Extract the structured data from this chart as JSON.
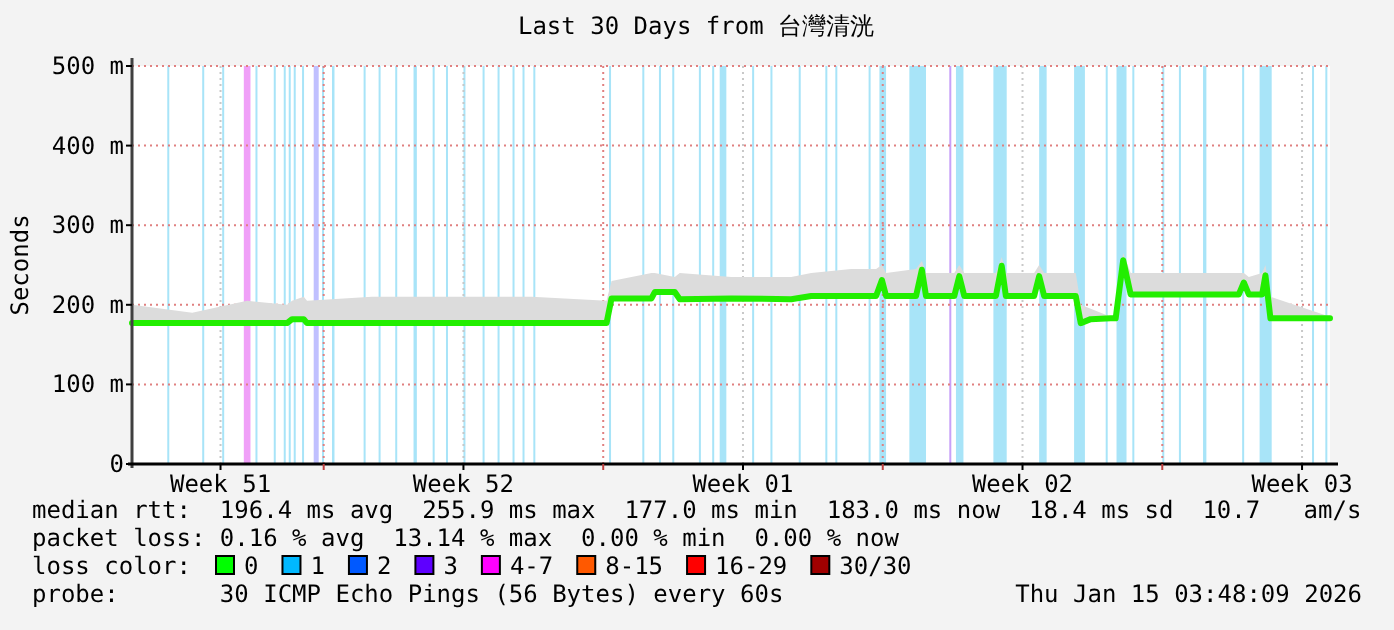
{
  "chart_data": {
    "type": "line",
    "title": "Last 30 Days from 台灣清洸",
    "ylabel": "Seconds",
    "xlim": [
      "2025-12-16T04:48",
      "2026-01-15T04:48"
    ],
    "ylim": [
      0,
      500
    ],
    "xticks": [
      {
        "value": "2025-12-18T10:00",
        "label": "Week 51"
      },
      {
        "value": "2025-12-21T00:00",
        "label": null
      },
      {
        "value": "2025-12-24T12:00",
        "label": "Week 52"
      },
      {
        "value": "2025-12-28T00:00",
        "label": null
      },
      {
        "value": "2025-12-31T12:00",
        "label": "Week 01"
      },
      {
        "value": "2026-01-04T00:00",
        "label": null
      },
      {
        "value": "2026-01-07T12:00",
        "label": "Week 02"
      },
      {
        "value": "2026-01-11T00:00",
        "label": null
      },
      {
        "value": "2026-01-14T12:00",
        "label": "Week 03"
      }
    ],
    "yticks": [
      0,
      {
        "value": 100,
        "label": "100 m"
      },
      {
        "value": 200,
        "label": "200 m"
      },
      {
        "value": 300,
        "label": "300 m"
      },
      {
        "value": 400,
        "label": "400 m"
      },
      {
        "value": 500,
        "label": "500 m"
      }
    ],
    "grid": true,
    "legend": "bottom",
    "legend_title": "loss color:",
    "series": [
      {
        "color": "#22ee00",
        "x": [
          "2025-12-16T04:48",
          "2025-12-17T17:00",
          "2025-12-19T02:00",
          "2025-12-20T02:00",
          "2025-12-20T05:00",
          "2025-12-20T12:00",
          "2025-12-20T14:00",
          "2025-12-22T05:00",
          "2025-12-24T05:00",
          "2025-12-26T05:00",
          "2025-12-28T02:00",
          "2025-12-28T05:00",
          "2025-12-29T05:00",
          "2025-12-29T07:00",
          "2025-12-29T19:00",
          "2025-12-29T22:00",
          "2025-12-31T05:00",
          "2026-01-01T17:00",
          "2026-01-02T05:00",
          "2026-01-03T05:00",
          "2026-01-03T20:00",
          "2026-01-03T23:30",
          "2026-01-04T02:00",
          "2026-01-04T20:00",
          "2026-01-04T23:30",
          "2026-01-05T02:00",
          "2026-01-05T19:00",
          "2026-01-05T22:00",
          "2026-01-06T01:00",
          "2026-01-06T20:00",
          "2026-01-06T23:30",
          "2026-01-07T02:00",
          "2026-01-07T19:00",
          "2026-01-07T22:00",
          "2026-01-08T01:00",
          "2026-01-08T20:00",
          "2026-01-08T23:00",
          "2026-01-09T05:00",
          "2026-01-09T17:00",
          "2026-01-09T20:00",
          "2026-01-10T00:30",
          "2026-01-10T05:00",
          "2026-01-12T22:00",
          "2026-01-13T01:00",
          "2026-01-13T04:00",
          "2026-01-13T12:00",
          "2026-01-13T14:00",
          "2026-01-13T17:00",
          "2026-01-15T04:48"
        ],
        "values": [
          177,
          177,
          177,
          177,
          182,
          182,
          177,
          177,
          177,
          177,
          177,
          208,
          208,
          216,
          216,
          207,
          208,
          207,
          211,
          211,
          211,
          231,
          211,
          211,
          244,
          211,
          211,
          236,
          211,
          211,
          249,
          211,
          211,
          236,
          211,
          211,
          177,
          182,
          183,
          183,
          256,
          213,
          213,
          228,
          213,
          213,
          237,
          183,
          183
        ],
        "lower": [
          177,
          177,
          177,
          177,
          182,
          182,
          177,
          177,
          177,
          177,
          177,
          208,
          208,
          216,
          216,
          207,
          208,
          207,
          211,
          211,
          211,
          231,
          211,
          211,
          244,
          211,
          211,
          236,
          211,
          211,
          249,
          211,
          211,
          236,
          211,
          211,
          177,
          182,
          183,
          183,
          256,
          213,
          213,
          228,
          213,
          213,
          237,
          183,
          183
        ],
        "upper": [
          200,
          190,
          205,
          200,
          205,
          210,
          205,
          210,
          210,
          210,
          205,
          230,
          240,
          240,
          235,
          240,
          235,
          235,
          240,
          245,
          245,
          250,
          240,
          245,
          255,
          240,
          240,
          250,
          240,
          240,
          260,
          240,
          240,
          250,
          240,
          240,
          200,
          195,
          185,
          185,
          265,
          240,
          240,
          240,
          235,
          240,
          250,
          210,
          185
        ]
      },
      {
        "name": "0",
        "color": "#00ff00"
      },
      {
        "name": "1",
        "color": "#00b8ff"
      },
      {
        "name": "2",
        "color": "#0059ff"
      },
      {
        "name": "3",
        "color": "#5e00ff"
      },
      {
        "name": "4-7",
        "color": "#ff00ff"
      },
      {
        "name": "8-15",
        "color": "#ff5900"
      },
      {
        "name": "16-29",
        "color": "#ff0000"
      },
      {
        "name": "30/30",
        "color": "#a00000"
      }
    ],
    "bands": [
      {
        "axis": "x",
        "from": "2025-12-17T02:00",
        "to": "2025-12-17T03:00",
        "color": "#a8e4f8"
      },
      {
        "axis": "x",
        "from": "2025-12-17T23:00",
        "to": "2025-12-18T00:00",
        "color": "#a8e4f8"
      },
      {
        "axis": "x",
        "from": "2025-12-18T11:00",
        "to": "2025-12-18T12:00",
        "color": "#a8e4f8"
      },
      {
        "axis": "x",
        "from": "2025-12-19T00:00",
        "to": "2025-12-19T04:00",
        "color": "#f0a0f8"
      },
      {
        "axis": "x",
        "from": "2025-12-19T07:00",
        "to": "2025-12-19T08:00",
        "color": "#a8e4f8"
      },
      {
        "axis": "x",
        "from": "2025-12-19T18:00",
        "to": "2025-12-19T19:00",
        "color": "#a8e4f8"
      },
      {
        "axis": "x",
        "from": "2025-12-20T00:00",
        "to": "2025-12-20T01:00",
        "color": "#a8e4f8"
      },
      {
        "axis": "x",
        "from": "2025-12-20T03:00",
        "to": "2025-12-20T04:00",
        "color": "#a8e4f8"
      },
      {
        "axis": "x",
        "from": "2025-12-20T06:00",
        "to": "2025-12-20T07:00",
        "color": "#a8e4f8"
      },
      {
        "axis": "x",
        "from": "2025-12-20T11:00",
        "to": "2025-12-20T12:00",
        "color": "#a8e4f8"
      },
      {
        "axis": "x",
        "from": "2025-12-20T18:00",
        "to": "2025-12-20T21:00",
        "color": "#c0c0ff"
      },
      {
        "axis": "x",
        "from": "2025-12-20T23:00",
        "to": "2025-12-21T00:00",
        "color": "#a8e4f8"
      },
      {
        "axis": "x",
        "from": "2025-12-21T05:00",
        "to": "2025-12-21T06:30",
        "color": "#a8e4f8"
      },
      {
        "axis": "x",
        "from": "2025-12-22T00:00",
        "to": "2025-12-22T01:00",
        "color": "#a8e4f8"
      },
      {
        "axis": "x",
        "from": "2025-12-22T09:00",
        "to": "2025-12-22T10:00",
        "color": "#a8e4f8"
      },
      {
        "axis": "x",
        "from": "2025-12-22T19:00",
        "to": "2025-12-22T20:00",
        "color": "#a8e4f8"
      },
      {
        "axis": "x",
        "from": "2025-12-23T06:00",
        "to": "2025-12-23T08:00",
        "color": "#a8e4f8"
      },
      {
        "axis": "x",
        "from": "2025-12-23T17:30",
        "to": "2025-12-23T18:30",
        "color": "#a8e4f8"
      },
      {
        "axis": "x",
        "from": "2025-12-24T01:30",
        "to": "2025-12-24T02:30",
        "color": "#a8e4f8"
      },
      {
        "axis": "x",
        "from": "2025-12-24T12:00",
        "to": "2025-12-24T13:00",
        "color": "#a8e4f8"
      },
      {
        "axis": "x",
        "from": "2025-12-24T23:30",
        "to": "2025-12-25T00:30",
        "color": "#a8e4f8"
      },
      {
        "axis": "x",
        "from": "2025-12-25T08:30",
        "to": "2025-12-25T09:30",
        "color": "#a8e4f8"
      },
      {
        "axis": "x",
        "from": "2025-12-25T17:30",
        "to": "2025-12-25T18:30",
        "color": "#a8e4f8"
      },
      {
        "axis": "x",
        "from": "2025-12-25T23:30",
        "to": "2025-12-26T00:30",
        "color": "#a8e4f8"
      },
      {
        "axis": "x",
        "from": "2025-12-26T06:00",
        "to": "2025-12-26T07:00",
        "color": "#a8e4f8"
      },
      {
        "axis": "x",
        "from": "2025-12-28T03:30",
        "to": "2025-12-28T04:30",
        "color": "#a8e4f8"
      },
      {
        "axis": "x",
        "from": "2025-12-28T23:30",
        "to": "2025-12-29T00:30",
        "color": "#a8e4f8"
      },
      {
        "axis": "x",
        "from": "2025-12-29T09:30",
        "to": "2025-12-29T10:30",
        "color": "#a8e4f8"
      },
      {
        "axis": "x",
        "from": "2025-12-29T17:30",
        "to": "2025-12-29T18:30",
        "color": "#a8e4f8"
      },
      {
        "axis": "x",
        "from": "2025-12-30T09:30",
        "to": "2025-12-30T10:30",
        "color": "#a8e4f8"
      },
      {
        "axis": "x",
        "from": "2025-12-30T17:30",
        "to": "2025-12-30T18:30",
        "color": "#a8e4f8"
      },
      {
        "axis": "x",
        "from": "2025-12-30T22:00",
        "to": "2025-12-31T02:00",
        "color": "#a8e4f8"
      },
      {
        "axis": "x",
        "from": "2025-12-31T17:30",
        "to": "2025-12-31T18:30",
        "color": "#a8e4f8"
      },
      {
        "axis": "x",
        "from": "2026-01-01T04:30",
        "to": "2026-01-01T05:30",
        "color": "#a8e4f8"
      },
      {
        "axis": "x",
        "from": "2026-01-01T21:30",
        "to": "2026-01-01T22:30",
        "color": "#a8e4f8"
      },
      {
        "axis": "x",
        "from": "2026-01-02T13:30",
        "to": "2026-01-02T14:30",
        "color": "#a8e4f8"
      },
      {
        "axis": "x",
        "from": "2026-01-02T19:30",
        "to": "2026-01-02T20:30",
        "color": "#a8e4f8"
      },
      {
        "axis": "x",
        "from": "2026-01-03T15:30",
        "to": "2026-01-03T16:30",
        "color": "#a8e4f8"
      },
      {
        "axis": "x",
        "from": "2026-01-03T22:00",
        "to": "2026-01-04T02:00",
        "color": "#a8e4f8"
      },
      {
        "axis": "x",
        "from": "2026-01-04T16:00",
        "to": "2026-01-05T02:00",
        "color": "#a8e4f8"
      },
      {
        "axis": "x",
        "from": "2026-01-05T16:00",
        "to": "2026-01-05T17:00",
        "color": "#c8a0f8"
      },
      {
        "axis": "x",
        "from": "2026-01-05T20:00",
        "to": "2026-01-06T00:30",
        "color": "#a8e4f8"
      },
      {
        "axis": "x",
        "from": "2026-01-06T18:30",
        "to": "2026-01-07T02:30",
        "color": "#a8e4f8"
      },
      {
        "axis": "x",
        "from": "2026-01-07T22:00",
        "to": "2026-01-08T02:30",
        "color": "#a8e4f8"
      },
      {
        "axis": "x",
        "from": "2026-01-08T19:00",
        "to": "2026-01-09T01:30",
        "color": "#a8e4f8"
      },
      {
        "axis": "x",
        "from": "2026-01-09T14:00",
        "to": "2026-01-09T15:00",
        "color": "#a8e4f8"
      },
      {
        "axis": "x",
        "from": "2026-01-09T20:30",
        "to": "2026-01-10T02:30",
        "color": "#a8e4f8"
      },
      {
        "axis": "x",
        "from": "2026-01-10T06:00",
        "to": "2026-01-10T07:00",
        "color": "#a8e4f8"
      },
      {
        "axis": "x",
        "from": "2026-01-11T00:00",
        "to": "2026-01-11T01:00",
        "color": "#a8e4f8"
      },
      {
        "axis": "x",
        "from": "2026-01-11T10:00",
        "to": "2026-01-11T11:00",
        "color": "#a8e4f8"
      },
      {
        "axis": "x",
        "from": "2026-01-12T00:30",
        "to": "2026-01-12T02:30",
        "color": "#a8e4f8"
      },
      {
        "axis": "x",
        "from": "2026-01-13T00:00",
        "to": "2026-01-13T01:00",
        "color": "#a8e4f8"
      },
      {
        "axis": "x",
        "from": "2026-01-13T10:30",
        "to": "2026-01-13T17:45",
        "color": "#a8e4f8"
      },
      {
        "axis": "x",
        "from": "2026-01-14T18:00",
        "to": "2026-01-14T19:00",
        "color": "#a8e4f8"
      },
      {
        "axis": "x",
        "from": "2026-01-15T02:00",
        "to": "2026-01-15T03:00",
        "color": "#a8e4f8"
      }
    ],
    "annotations": [
      "median rtt:  196.4 ms avg  255.9 ms max  177.0 ms min  183.0 ms now  18.4 ms sd  10.7   am/s",
      "packet loss: 0.16 % avg  13.14 % max  0.00 % min  0.00 % now",
      "probe:       30 ICMP Echo Pings (56 Bytes) every 60s",
      "Thu Jan 15 03:48:09 2026"
    ]
  }
}
